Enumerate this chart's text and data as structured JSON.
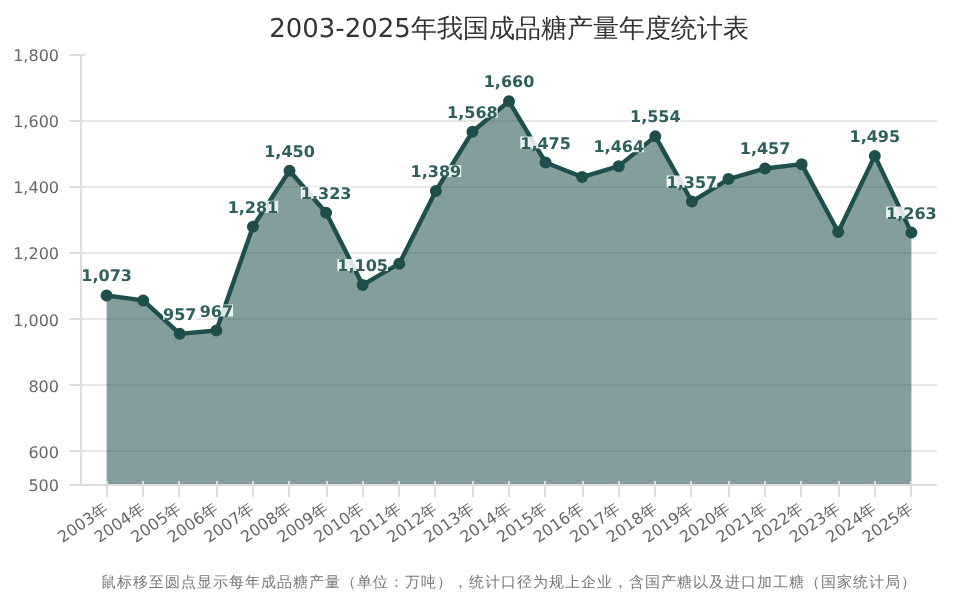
{
  "chart_data": {
    "type": "area",
    "title": "2003-2025年我国成品糖产量年度统计表",
    "categories": [
      "2003年",
      "2004年",
      "2005年",
      "2006年",
      "2007年",
      "2008年",
      "2009年",
      "2010年",
      "2011年",
      "2012年",
      "2013年",
      "2014年",
      "2015年",
      "2016年",
      "2017年",
      "2018年",
      "2019年",
      "2020年",
      "2021年",
      "2022年",
      "2023年",
      "2024年",
      "2025年"
    ],
    "values": [
      1073,
      1058,
      957,
      967,
      1281,
      1450,
      1323,
      1105,
      1169,
      1389,
      1568,
      1660,
      1475,
      1431,
      1464,
      1554,
      1357,
      1425,
      1457,
      1470,
      1265,
      1495,
      1263
    ],
    "value_labels": [
      "1,073",
      null,
      "957",
      "967",
      "1,281",
      "1,450",
      "1,323",
      "1,105",
      null,
      "1,389",
      "1,568",
      "1,660",
      "1,475",
      null,
      "1,464",
      "1,554",
      "1,357",
      null,
      "1,457",
      null,
      null,
      "1,495",
      "1,263"
    ],
    "color": "#1e4f4c",
    "marker": "circle",
    "grid": "y",
    "ylim": [
      500,
      1800
    ],
    "yticks": [
      500,
      600,
      800,
      {
        "value": 1000,
        "label": "1,000"
      },
      {
        "value": 1200,
        "label": "1,200"
      },
      {
        "value": 1400,
        "label": "1,400"
      },
      {
        "value": 1600,
        "label": "1,600"
      },
      {
        "value": 1800,
        "label": "1,800"
      }
    ],
    "annotations": [
      "鼠标移至圆点显示每年成品糖产量（单位：万吨），统计口径为规上企业，含国产糖以及进口加工糖（国家统计局）"
    ]
  }
}
